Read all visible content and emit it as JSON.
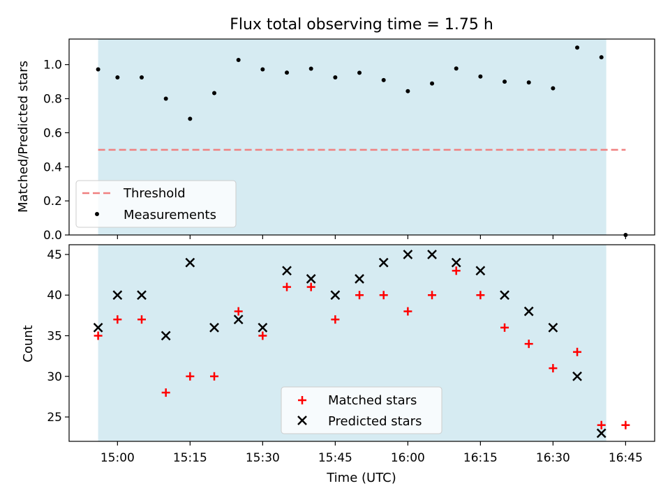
{
  "figure": {
    "title": "Flux total observing time = 1.75 h",
    "xlabel": "Time (UTC)",
    "band_color": "#add8e6",
    "band_start": "14:56",
    "band_end": "16:41"
  },
  "chart_data": [
    {
      "type": "scatter",
      "panel": "top",
      "ylabel": "Matched/Predicted stars",
      "xlim": [
        "14:50",
        "16:51"
      ],
      "ylim": [
        0,
        1.15
      ],
      "yticks": [
        0.0,
        0.2,
        0.4,
        0.6,
        0.8,
        1.0
      ],
      "ytick_labels": [
        "0.0",
        "0.2",
        "0.4",
        "0.6",
        "0.8",
        "1.0"
      ],
      "legend_position": "lower-left",
      "series": [
        {
          "name": "Threshold",
          "kind": "line",
          "style": "dashed",
          "color": "#f08080",
          "x": [
            "14:56",
            "16:45"
          ],
          "y": [
            0.5,
            0.5
          ]
        },
        {
          "name": "Measurements",
          "kind": "points",
          "color": "#000000",
          "x": [
            "14:56",
            "15:00",
            "15:05",
            "15:10",
            "15:15",
            "15:20",
            "15:25",
            "15:30",
            "15:35",
            "15:40",
            "15:45",
            "15:50",
            "15:55",
            "16:00",
            "16:05",
            "16:10",
            "16:15",
            "16:20",
            "16:25",
            "16:30",
            "16:35",
            "16:40",
            "16:45"
          ],
          "y": [
            0.972,
            0.925,
            0.925,
            0.8,
            0.682,
            0.833,
            1.027,
            0.972,
            0.953,
            0.976,
            0.925,
            0.952,
            0.909,
            0.844,
            0.889,
            0.977,
            0.93,
            0.9,
            0.895,
            0.861,
            1.1,
            1.043,
            0.0
          ]
        }
      ]
    },
    {
      "type": "scatter",
      "panel": "bottom",
      "ylabel": "Count",
      "xlabel": "Time (UTC)",
      "xlim": [
        "14:50",
        "16:51"
      ],
      "ylim": [
        22,
        46.2
      ],
      "yticks": [
        25,
        30,
        35,
        40,
        45
      ],
      "ytick_labels": [
        "25",
        "30",
        "35",
        "40",
        "45"
      ],
      "xticks": [
        "15:00",
        "15:15",
        "15:30",
        "15:45",
        "16:00",
        "16:15",
        "16:30",
        "16:45"
      ],
      "xtick_labels": [
        "15:00",
        "15:15",
        "15:30",
        "15:45",
        "16:00",
        "16:15",
        "16:30",
        "16:45"
      ],
      "legend_position": "lower-center",
      "series": [
        {
          "name": "Matched stars",
          "marker": "plus",
          "color": "#ff0000",
          "x": [
            "14:56",
            "15:00",
            "15:05",
            "15:10",
            "15:15",
            "15:20",
            "15:25",
            "15:30",
            "15:35",
            "15:40",
            "15:45",
            "15:50",
            "15:55",
            "16:00",
            "16:05",
            "16:10",
            "16:15",
            "16:20",
            "16:25",
            "16:30",
            "16:35",
            "16:40",
            "16:45"
          ],
          "y": [
            35,
            37,
            37,
            28,
            30,
            30,
            38,
            35,
            41,
            41,
            37,
            40,
            40,
            38,
            40,
            43,
            40,
            36,
            34,
            31,
            33,
            24,
            24
          ]
        },
        {
          "name": "Predicted stars",
          "marker": "x",
          "color": "#000000",
          "x": [
            "14:56",
            "15:00",
            "15:05",
            "15:10",
            "15:15",
            "15:20",
            "15:25",
            "15:30",
            "15:35",
            "15:40",
            "15:45",
            "15:50",
            "15:55",
            "16:00",
            "16:05",
            "16:10",
            "16:15",
            "16:20",
            "16:25",
            "16:30",
            "16:35",
            "16:40"
          ],
          "y": [
            36,
            40,
            40,
            35,
            44,
            36,
            37,
            36,
            43,
            42,
            40,
            42,
            44,
            45,
            45,
            44,
            43,
            40,
            38,
            36,
            30,
            23
          ]
        }
      ]
    }
  ]
}
